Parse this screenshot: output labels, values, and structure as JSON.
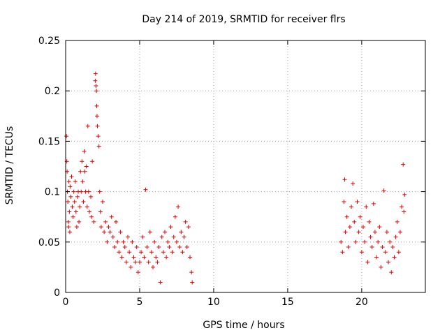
{
  "chart_data": {
    "type": "scatter",
    "title": "Day 214 of 2019, SRMTID for receiver flrs",
    "xlabel": "GPS time / hours",
    "ylabel": "SRMTID / TECUs",
    "xlim": [
      0,
      24.3
    ],
    "ylim": [
      0,
      0.25
    ],
    "xticks": [
      "0",
      "5",
      "10",
      "15",
      "20"
    ],
    "yticks": [
      "0",
      "0.05",
      "0.1",
      "0.15",
      "0.2",
      "0.25"
    ],
    "grid": true,
    "legend": "none",
    "marker": "+",
    "color": "#e00000",
    "series": [
      {
        "points": [
          [
            0.05,
            0.155
          ],
          [
            0.08,
            0.13
          ],
          [
            0.1,
            0.12
          ],
          [
            0.12,
            0.1
          ],
          [
            0.15,
            0.09
          ],
          [
            0.18,
            0.07
          ],
          [
            0.2,
            0.065
          ],
          [
            0.22,
            0.11
          ],
          [
            0.25,
            0.08
          ],
          [
            0.28,
            0.06
          ],
          [
            0.3,
            0.105
          ],
          [
            0.35,
            0.095
          ],
          [
            0.4,
            0.115
          ],
          [
            0.45,
            0.085
          ],
          [
            0.5,
            0.075
          ],
          [
            0.55,
            0.1
          ],
          [
            0.6,
            0.09
          ],
          [
            0.65,
            0.11
          ],
          [
            0.7,
            0.08
          ],
          [
            0.75,
            0.065
          ],
          [
            0.8,
            0.095
          ],
          [
            0.85,
            0.1
          ],
          [
            0.9,
            0.07
          ],
          [
            0.95,
            0.085
          ],
          [
            1.0,
            0.12
          ],
          [
            1.05,
            0.1
          ],
          [
            1.1,
            0.13
          ],
          [
            1.15,
            0.11
          ],
          [
            1.2,
            0.09
          ],
          [
            1.25,
            0.14
          ],
          [
            1.3,
            0.12
          ],
          [
            1.35,
            0.1
          ],
          [
            1.4,
            0.125
          ],
          [
            1.45,
            0.085
          ],
          [
            1.5,
            0.165
          ],
          [
            1.55,
            0.1
          ],
          [
            1.6,
            0.08
          ],
          [
            1.7,
            0.095
          ],
          [
            1.75,
            0.075
          ],
          [
            1.8,
            0.13
          ],
          [
            1.9,
            0.07
          ],
          [
            2.0,
            0.21
          ],
          [
            2.02,
            0.217
          ],
          [
            2.05,
            0.205
          ],
          [
            2.08,
            0.2
          ],
          [
            2.1,
            0.185
          ],
          [
            2.12,
            0.175
          ],
          [
            2.15,
            0.165
          ],
          [
            2.2,
            0.155
          ],
          [
            2.25,
            0.145
          ],
          [
            2.3,
            0.1
          ],
          [
            2.35,
            0.08
          ],
          [
            2.4,
            0.065
          ],
          [
            2.5,
            0.09
          ],
          [
            2.6,
            0.06
          ],
          [
            2.7,
            0.07
          ],
          [
            2.8,
            0.05
          ],
          [
            2.9,
            0.065
          ],
          [
            3.0,
            0.06
          ],
          [
            3.1,
            0.075
          ],
          [
            3.2,
            0.055
          ],
          [
            3.3,
            0.045
          ],
          [
            3.4,
            0.07
          ],
          [
            3.5,
            0.05
          ],
          [
            3.6,
            0.04
          ],
          [
            3.7,
            0.06
          ],
          [
            3.8,
            0.035
          ],
          [
            3.9,
            0.05
          ],
          [
            4.0,
            0.045
          ],
          [
            4.1,
            0.03
          ],
          [
            4.2,
            0.055
          ],
          [
            4.3,
            0.04
          ],
          [
            4.4,
            0.025
          ],
          [
            4.5,
            0.05
          ],
          [
            4.6,
            0.035
          ],
          [
            4.7,
            0.03
          ],
          [
            4.8,
            0.045
          ],
          [
            4.9,
            0.02
          ],
          [
            5.0,
            0.03
          ],
          [
            5.1,
            0.04
          ],
          [
            5.2,
            0.055
          ],
          [
            5.3,
            0.035
          ],
          [
            5.4,
            0.102
          ],
          [
            5.5,
            0.045
          ],
          [
            5.6,
            0.03
          ],
          [
            5.7,
            0.06
          ],
          [
            5.8,
            0.04
          ],
          [
            5.9,
            0.025
          ],
          [
            6.0,
            0.05
          ],
          [
            6.1,
            0.035
          ],
          [
            6.2,
            0.03
          ],
          [
            6.3,
            0.045
          ],
          [
            6.4,
            0.01
          ],
          [
            6.5,
            0.055
          ],
          [
            6.6,
            0.04
          ],
          [
            6.7,
            0.06
          ],
          [
            6.8,
            0.035
          ],
          [
            6.9,
            0.05
          ],
          [
            7.0,
            0.045
          ],
          [
            7.1,
            0.065
          ],
          [
            7.2,
            0.04
          ],
          [
            7.3,
            0.055
          ],
          [
            7.4,
            0.075
          ],
          [
            7.5,
            0.05
          ],
          [
            7.6,
            0.085
          ],
          [
            7.7,
            0.045
          ],
          [
            7.8,
            0.06
          ],
          [
            7.9,
            0.04
          ],
          [
            8.0,
            0.055
          ],
          [
            8.1,
            0.07
          ],
          [
            8.2,
            0.045
          ],
          [
            8.3,
            0.065
          ],
          [
            8.4,
            0.035
          ],
          [
            8.5,
            0.02
          ],
          [
            8.55,
            0.01
          ],
          [
            18.6,
            0.05
          ],
          [
            18.7,
            0.04
          ],
          [
            18.8,
            0.09
          ],
          [
            18.85,
            0.112
          ],
          [
            18.9,
            0.06
          ],
          [
            19.0,
            0.075
          ],
          [
            19.1,
            0.045
          ],
          [
            19.2,
            0.065
          ],
          [
            19.3,
            0.085
          ],
          [
            19.4,
            0.108
          ],
          [
            19.5,
            0.07
          ],
          [
            19.6,
            0.05
          ],
          [
            19.7,
            0.09
          ],
          [
            19.8,
            0.06
          ],
          [
            19.9,
            0.075
          ],
          [
            20.0,
            0.04
          ],
          [
            20.1,
            0.065
          ],
          [
            20.2,
            0.05
          ],
          [
            20.3,
            0.085
          ],
          [
            20.4,
            0.03
          ],
          [
            20.5,
            0.07
          ],
          [
            20.6,
            0.055
          ],
          [
            20.7,
            0.045
          ],
          [
            20.8,
            0.088
          ],
          [
            20.9,
            0.06
          ],
          [
            21.0,
            0.035
          ],
          [
            21.1,
            0.05
          ],
          [
            21.2,
            0.065
          ],
          [
            21.3,
            0.025
          ],
          [
            21.4,
            0.045
          ],
          [
            21.5,
            0.101
          ],
          [
            21.6,
            0.04
          ],
          [
            21.7,
            0.06
          ],
          [
            21.8,
            0.03
          ],
          [
            21.9,
            0.05
          ],
          [
            22.0,
            0.02
          ],
          [
            22.1,
            0.045
          ],
          [
            22.2,
            0.035
          ],
          [
            22.3,
            0.055
          ],
          [
            22.4,
            0.07
          ],
          [
            22.5,
            0.04
          ],
          [
            22.6,
            0.06
          ],
          [
            22.7,
            0.085
          ],
          [
            22.8,
            0.127
          ],
          [
            22.85,
            0.08
          ],
          [
            22.9,
            0.097
          ]
        ]
      }
    ]
  }
}
